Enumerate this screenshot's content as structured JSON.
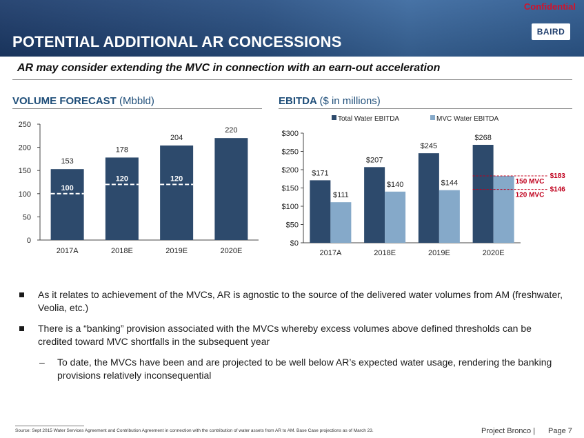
{
  "header": {
    "confidential": "Confidential",
    "title": "POTENTIAL ADDITIONAL AR CONCESSIONS",
    "logo": "BAIRD"
  },
  "subtitle": "AR may consider extending the MVC in connection with an earn-out acceleration",
  "volume": {
    "title": "VOLUME FORECAST",
    "unit": "(Mbbld)"
  },
  "ebitda": {
    "title": "EBITDA",
    "unit": "($ in millions)"
  },
  "chart_data": [
    {
      "type": "bar",
      "title": "VOLUME FORECAST (Mbbld)",
      "categories": [
        "2017A",
        "2018E",
        "2019E",
        "2020E"
      ],
      "values": [
        153,
        178,
        204,
        220
      ],
      "value_labels": [
        "153",
        "178",
        "204",
        "220"
      ],
      "mvc_values": [
        100,
        120,
        120
      ],
      "mvc_labels": [
        "100",
        "120",
        "120"
      ],
      "ylim": [
        0,
        250
      ],
      "yticks": [
        0,
        50,
        100,
        150,
        200,
        250
      ],
      "ytick_labels": [
        "0",
        "50",
        "100",
        "150",
        "200",
        "250"
      ],
      "colors": {
        "bar": "#2d4a6c",
        "mvc_line": "#ffffff"
      }
    },
    {
      "type": "bar",
      "title": "EBITDA ($ in millions)",
      "categories": [
        "2017A",
        "2018E",
        "2019E",
        "2020E"
      ],
      "series": [
        {
          "name": "Total Water EBITDA",
          "values": [
            171,
            207,
            245,
            268
          ],
          "labels": [
            "$171",
            "$207",
            "$245",
            "$268"
          ],
          "color": "#2d4a6c"
        },
        {
          "name": "MVC Water EBITDA",
          "values": [
            111,
            140,
            144,
            null
          ],
          "labels": [
            "$111",
            "$140",
            "$144",
            ""
          ],
          "color": "#85a9c9"
        }
      ],
      "extra_bar": {
        "category": "2020E",
        "value": 183
      },
      "annotations": [
        {
          "label": "150 MVC",
          "value_label": "$183",
          "y": 183
        },
        {
          "label": "120 MVC",
          "value_label": "$146",
          "y": 146
        }
      ],
      "ylim": [
        0,
        300
      ],
      "yticks": [
        0,
        50,
        100,
        150,
        200,
        250,
        300
      ],
      "ytick_labels": [
        "$0",
        "$50",
        "$100",
        "$150",
        "$200",
        "$250",
        "$300"
      ],
      "legend_position": "top",
      "colors": {
        "annotation": "#c0001d"
      }
    }
  ],
  "bullets": [
    "As it relates to achievement of the MVCs, AR is agnostic to the source of the delivered water volumes from AM (freshwater, Veolia, etc.)",
    "There is a “banking” provision associated with the MVCs whereby excess volumes above defined thresholds can be credited toward MVC shortfalls in the subsequent year"
  ],
  "sub_bullet": {
    "dash": "–",
    "text": "To date, the MVCs have been and are projected to be well below AR’s expected water usage, rendering the banking provisions relatively inconsequential"
  },
  "footer": {
    "source": "Source:  Sept 2015 Water Services Agreement and Contribution Agreement in connection with the contribution of water assets from AR to AM.  Base Case projections as of March 23.",
    "project": "Project Bronco  |",
    "page": "Page 7"
  }
}
